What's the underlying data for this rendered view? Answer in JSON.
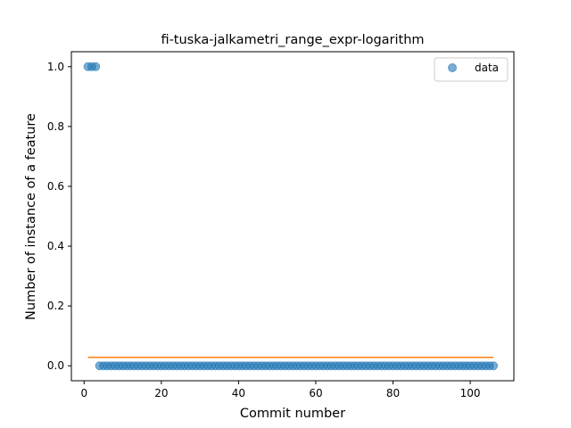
{
  "chart_data": {
    "type": "scatter",
    "title": "fi-tuska-jalkametri_range_expr-logarithm",
    "xlabel": "Commit number",
    "ylabel": "Number of instance of a feature",
    "xlim": [
      -3.3,
      111.3
    ],
    "ylim": [
      -0.05,
      1.05
    ],
    "x_ticks": [
      0,
      20,
      40,
      60,
      80,
      100
    ],
    "y_ticks": [
      0.0,
      0.2,
      0.4,
      0.6,
      0.8,
      1.0
    ],
    "x_tick_labels": [
      "0",
      "20",
      "40",
      "60",
      "80",
      "100"
    ],
    "y_tick_labels": [
      "0.0",
      "0.2",
      "0.4",
      "0.6",
      "0.8",
      "1.0"
    ],
    "grid": false,
    "legend": {
      "placement": "top-right",
      "entries": [
        "data"
      ]
    },
    "series": [
      {
        "name": "data",
        "kind": "scatter",
        "color": "#1f77b4",
        "points": [
          [
            1,
            1
          ],
          [
            2,
            1
          ],
          [
            3,
            1
          ],
          [
            4,
            0
          ],
          [
            5,
            0
          ],
          [
            6,
            0
          ],
          [
            7,
            0
          ],
          [
            8,
            0
          ],
          [
            9,
            0
          ],
          [
            10,
            0
          ],
          [
            11,
            0
          ],
          [
            12,
            0
          ],
          [
            13,
            0
          ],
          [
            14,
            0
          ],
          [
            15,
            0
          ],
          [
            16,
            0
          ],
          [
            17,
            0
          ],
          [
            18,
            0
          ],
          [
            19,
            0
          ],
          [
            20,
            0
          ],
          [
            21,
            0
          ],
          [
            22,
            0
          ],
          [
            23,
            0
          ],
          [
            24,
            0
          ],
          [
            25,
            0
          ],
          [
            26,
            0
          ],
          [
            27,
            0
          ],
          [
            28,
            0
          ],
          [
            29,
            0
          ],
          [
            30,
            0
          ],
          [
            31,
            0
          ],
          [
            32,
            0
          ],
          [
            33,
            0
          ],
          [
            34,
            0
          ],
          [
            35,
            0
          ],
          [
            36,
            0
          ],
          [
            37,
            0
          ],
          [
            38,
            0
          ],
          [
            39,
            0
          ],
          [
            40,
            0
          ],
          [
            41,
            0
          ],
          [
            42,
            0
          ],
          [
            43,
            0
          ],
          [
            44,
            0
          ],
          [
            45,
            0
          ],
          [
            46,
            0
          ],
          [
            47,
            0
          ],
          [
            48,
            0
          ],
          [
            49,
            0
          ],
          [
            50,
            0
          ],
          [
            51,
            0
          ],
          [
            52,
            0
          ],
          [
            53,
            0
          ],
          [
            54,
            0
          ],
          [
            55,
            0
          ],
          [
            56,
            0
          ],
          [
            57,
            0
          ],
          [
            58,
            0
          ],
          [
            59,
            0
          ],
          [
            60,
            0
          ],
          [
            61,
            0
          ],
          [
            62,
            0
          ],
          [
            63,
            0
          ],
          [
            64,
            0
          ],
          [
            65,
            0
          ],
          [
            66,
            0
          ],
          [
            67,
            0
          ],
          [
            68,
            0
          ],
          [
            69,
            0
          ],
          [
            70,
            0
          ],
          [
            71,
            0
          ],
          [
            72,
            0
          ],
          [
            73,
            0
          ],
          [
            74,
            0
          ],
          [
            75,
            0
          ],
          [
            76,
            0
          ],
          [
            77,
            0
          ],
          [
            78,
            0
          ],
          [
            79,
            0
          ],
          [
            80,
            0
          ],
          [
            81,
            0
          ],
          [
            82,
            0
          ],
          [
            83,
            0
          ],
          [
            84,
            0
          ],
          [
            85,
            0
          ],
          [
            86,
            0
          ],
          [
            87,
            0
          ],
          [
            88,
            0
          ],
          [
            89,
            0
          ],
          [
            90,
            0
          ],
          [
            91,
            0
          ],
          [
            92,
            0
          ],
          [
            93,
            0
          ],
          [
            94,
            0
          ],
          [
            95,
            0
          ],
          [
            96,
            0
          ],
          [
            97,
            0
          ],
          [
            98,
            0
          ],
          [
            99,
            0
          ],
          [
            100,
            0
          ],
          [
            101,
            0
          ],
          [
            102,
            0
          ],
          [
            103,
            0
          ],
          [
            104,
            0
          ],
          [
            105,
            0
          ],
          [
            106,
            0
          ]
        ]
      },
      {
        "kind": "line",
        "color": "#ff7f0e",
        "points": [
          [
            1,
            0.0283
          ],
          [
            106,
            0.0283
          ]
        ]
      }
    ]
  }
}
